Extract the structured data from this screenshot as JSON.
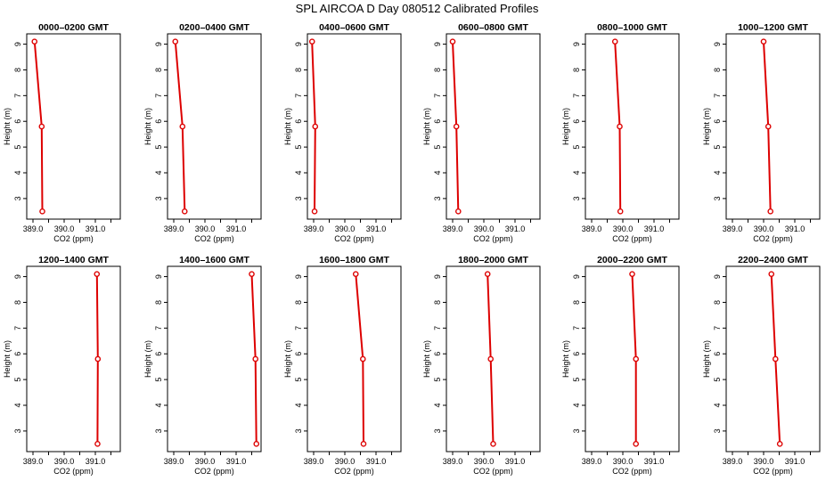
{
  "title": "SPL AIRCOA D  Day 080512  Calibrated Profiles",
  "colors": {
    "series": "#dd0000",
    "axis": "#000000",
    "background": "#ffffff"
  },
  "chart_data": [
    {
      "type": "line",
      "title": "0000–0200 GMT",
      "xlabel": "CO2 (ppm)",
      "ylabel": "Height (m)",
      "xlim": [
        388.8,
        391.8
      ],
      "ylim": [
        2.2,
        9.4
      ],
      "xticks": [
        "389.0",
        "390.0",
        "391.0"
      ],
      "yticks": [
        "3",
        "4",
        "5",
        "6",
        "7",
        "8",
        "9"
      ],
      "grid": false,
      "series": [
        {
          "x": [
            389.05,
            389.28,
            389.3
          ],
          "y": [
            9.1,
            5.8,
            2.5
          ]
        }
      ]
    },
    {
      "type": "line",
      "title": "0200–0400 GMT",
      "xlabel": "CO2 (ppm)",
      "ylabel": "Height (m)",
      "xlim": [
        388.8,
        391.8
      ],
      "ylim": [
        2.2,
        9.4
      ],
      "xticks": [
        "389.0",
        "390.0",
        "391.0"
      ],
      "yticks": [
        "3",
        "4",
        "5",
        "6",
        "7",
        "8",
        "9"
      ],
      "grid": false,
      "series": [
        {
          "x": [
            389.05,
            389.28,
            389.35
          ],
          "y": [
            9.1,
            5.8,
            2.5
          ]
        }
      ]
    },
    {
      "type": "line",
      "title": "0400–0600 GMT",
      "xlabel": "CO2 (ppm)",
      "ylabel": "Height (m)",
      "xlim": [
        388.8,
        391.8
      ],
      "ylim": [
        2.2,
        9.4
      ],
      "xticks": [
        "389.0",
        "390.0",
        "391.0"
      ],
      "yticks": [
        "3",
        "4",
        "5",
        "6",
        "7",
        "8",
        "9"
      ],
      "grid": false,
      "series": [
        {
          "x": [
            388.95,
            389.05,
            389.03
          ],
          "y": [
            9.1,
            5.8,
            2.5
          ]
        }
      ]
    },
    {
      "type": "line",
      "title": "0600–0800 GMT",
      "xlabel": "CO2 (ppm)",
      "ylabel": "Height (m)",
      "xlim": [
        388.8,
        391.8
      ],
      "ylim": [
        2.2,
        9.4
      ],
      "xticks": [
        "389.0",
        "390.0",
        "391.0"
      ],
      "yticks": [
        "3",
        "4",
        "5",
        "6",
        "7",
        "8",
        "9"
      ],
      "grid": false,
      "series": [
        {
          "x": [
            389.0,
            389.12,
            389.18
          ],
          "y": [
            9.1,
            5.8,
            2.5
          ]
        }
      ]
    },
    {
      "type": "line",
      "title": "0800–1000 GMT",
      "xlabel": "CO2 (ppm)",
      "ylabel": "Height (m)",
      "xlim": [
        388.8,
        391.8
      ],
      "ylim": [
        2.2,
        9.4
      ],
      "xticks": [
        "389.0",
        "390.0",
        "391.0"
      ],
      "yticks": [
        "3",
        "4",
        "5",
        "6",
        "7",
        "8",
        "9"
      ],
      "grid": false,
      "series": [
        {
          "x": [
            389.75,
            389.9,
            389.92
          ],
          "y": [
            9.1,
            5.8,
            2.5
          ]
        }
      ]
    },
    {
      "type": "line",
      "title": "1000–1200 GMT",
      "xlabel": "CO2 (ppm)",
      "ylabel": "Height (m)",
      "xlim": [
        388.8,
        391.8
      ],
      "ylim": [
        2.2,
        9.4
      ],
      "xticks": [
        "389.0",
        "390.0",
        "391.0"
      ],
      "yticks": [
        "3",
        "4",
        "5",
        "6",
        "7",
        "8",
        "9"
      ],
      "grid": false,
      "series": [
        {
          "x": [
            390.0,
            390.15,
            390.22
          ],
          "y": [
            9.1,
            5.8,
            2.5
          ]
        }
      ]
    },
    {
      "type": "line",
      "title": "1200–1400 GMT",
      "xlabel": "CO2 (ppm)",
      "ylabel": "Height (m)",
      "xlim": [
        388.8,
        391.8
      ],
      "ylim": [
        2.2,
        9.4
      ],
      "xticks": [
        "389.0",
        "390.0",
        "391.0"
      ],
      "yticks": [
        "3",
        "4",
        "5",
        "6",
        "7",
        "8",
        "9"
      ],
      "grid": false,
      "series": [
        {
          "x": [
            391.05,
            391.08,
            391.07
          ],
          "y": [
            9.1,
            5.8,
            2.5
          ]
        }
      ]
    },
    {
      "type": "line",
      "title": "1400–1600 GMT",
      "xlabel": "CO2 (ppm)",
      "ylabel": "Height (m)",
      "xlim": [
        388.8,
        391.8
      ],
      "ylim": [
        2.2,
        9.4
      ],
      "xticks": [
        "389.0",
        "390.0",
        "391.0"
      ],
      "yticks": [
        "3",
        "4",
        "5",
        "6",
        "7",
        "8",
        "9"
      ],
      "grid": false,
      "series": [
        {
          "x": [
            391.5,
            391.62,
            391.65
          ],
          "y": [
            9.1,
            5.8,
            2.5
          ]
        }
      ]
    },
    {
      "type": "line",
      "title": "1600–1800 GMT",
      "xlabel": "CO2 (ppm)",
      "ylabel": "Height (m)",
      "xlim": [
        388.8,
        391.8
      ],
      "ylim": [
        2.2,
        9.4
      ],
      "xticks": [
        "389.0",
        "390.0",
        "391.0"
      ],
      "yticks": [
        "3",
        "4",
        "5",
        "6",
        "7",
        "8",
        "9"
      ],
      "grid": false,
      "series": [
        {
          "x": [
            390.35,
            390.58,
            390.6
          ],
          "y": [
            9.1,
            5.8,
            2.5
          ]
        }
      ]
    },
    {
      "type": "line",
      "title": "1800–2000 GMT",
      "xlabel": "CO2 (ppm)",
      "ylabel": "Height (m)",
      "xlim": [
        388.8,
        391.8
      ],
      "ylim": [
        2.2,
        9.4
      ],
      "xticks": [
        "389.0",
        "390.0",
        "391.0"
      ],
      "yticks": [
        "3",
        "4",
        "5",
        "6",
        "7",
        "8",
        "9"
      ],
      "grid": false,
      "series": [
        {
          "x": [
            390.12,
            390.22,
            390.3
          ],
          "y": [
            9.1,
            5.8,
            2.5
          ]
        }
      ]
    },
    {
      "type": "line",
      "title": "2000–2200 GMT",
      "xlabel": "CO2 (ppm)",
      "ylabel": "Height (m)",
      "xlim": [
        388.8,
        391.8
      ],
      "ylim": [
        2.2,
        9.4
      ],
      "xticks": [
        "389.0",
        "390.0",
        "391.0"
      ],
      "yticks": [
        "3",
        "4",
        "5",
        "6",
        "7",
        "8",
        "9"
      ],
      "grid": false,
      "series": [
        {
          "x": [
            390.3,
            390.42,
            390.42
          ],
          "y": [
            9.1,
            5.8,
            2.5
          ]
        }
      ]
    },
    {
      "type": "line",
      "title": "2200–2400 GMT",
      "xlabel": "CO2 (ppm)",
      "ylabel": "Height (m)",
      "xlim": [
        388.8,
        391.8
      ],
      "ylim": [
        2.2,
        9.4
      ],
      "xticks": [
        "389.0",
        "390.0",
        "391.0"
      ],
      "yticks": [
        "3",
        "4",
        "5",
        "6",
        "7",
        "8",
        "9"
      ],
      "grid": false,
      "series": [
        {
          "x": [
            390.25,
            390.38,
            390.52
          ],
          "y": [
            9.1,
            5.8,
            2.5
          ]
        }
      ]
    }
  ]
}
